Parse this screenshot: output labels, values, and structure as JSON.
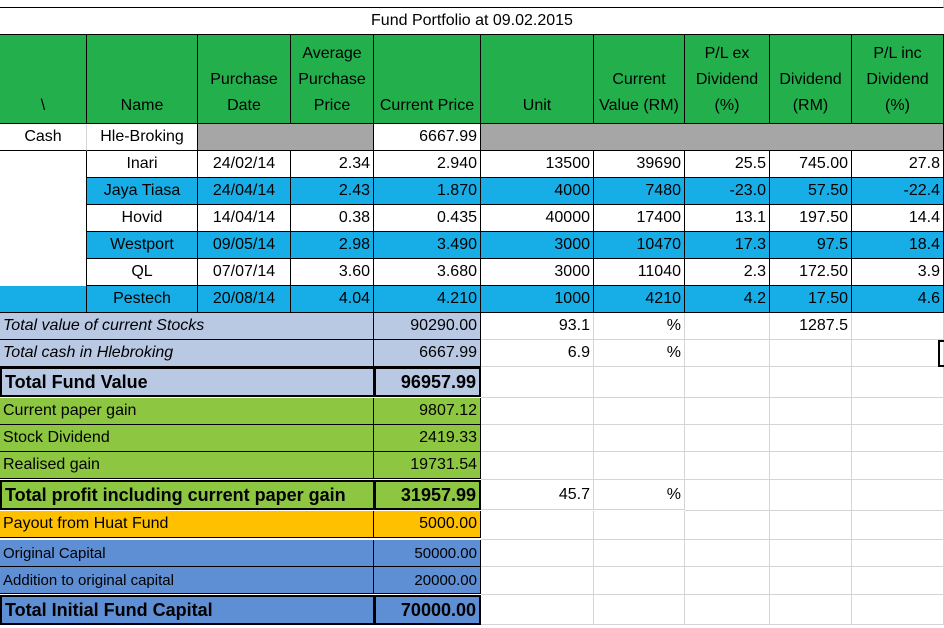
{
  "title": "Fund Portfolio at 09.02.2015",
  "headers": [
    "\\",
    "Name",
    "Purchase Date",
    "Average Purchase Price",
    "Current Price",
    "Unit",
    "Current Value (RM)",
    "P/L ex Dividend (%)",
    "Dividend (RM)",
    "P/L inc Dividend (%)"
  ],
  "cash_row": {
    "label": "Cash",
    "name": "Hle-Broking",
    "price": "6667.99"
  },
  "stocks": [
    {
      "name": "Inari",
      "date": "24/02/14",
      "avg": "2.34",
      "cur": "2.940",
      "unit": "13500",
      "value": "39690",
      "pl_ex": "25.5",
      "div": "745.00",
      "pl_inc": "27.8"
    },
    {
      "name": "Jaya Tiasa",
      "date": "24/04/14",
      "avg": "2.43",
      "cur": "1.870",
      "unit": "4000",
      "value": "7480",
      "pl_ex": "-23.0",
      "div": "57.50",
      "pl_inc": "-22.4"
    },
    {
      "name": "Hovid",
      "date": "14/04/14",
      "avg": "0.38",
      "cur": "0.435",
      "unit": "40000",
      "value": "17400",
      "pl_ex": "13.1",
      "div": "197.50",
      "pl_inc": "14.4"
    },
    {
      "name": "Westport",
      "date": "09/05/14",
      "avg": "2.98",
      "cur": "3.490",
      "unit": "3000",
      "value": "10470",
      "pl_ex": "17.3",
      "div": "97.5",
      "pl_inc": "18.4"
    },
    {
      "name": "QL",
      "date": "07/07/14",
      "avg": "3.60",
      "cur": "3.680",
      "unit": "3000",
      "value": "11040",
      "pl_ex": "2.3",
      "div": "172.50",
      "pl_inc": "3.9"
    },
    {
      "name": "Pestech",
      "date": "20/08/14",
      "avg": "4.04",
      "cur": "4.210",
      "unit": "1000",
      "value": "4210",
      "pl_ex": "4.2",
      "div": "17.50",
      "pl_inc": "4.6"
    }
  ],
  "summary": {
    "stocks_label": "Total value of current Stocks",
    "stocks_value": "90290.00",
    "stocks_pct": "93.1",
    "pct_sign": "%",
    "div_total": "1287.5",
    "cash_label": "Total cash in Hlebroking",
    "cash_value": "6667.99",
    "cash_pct": "6.9",
    "fund_label": "Total Fund Value",
    "fund_value": "96957.99",
    "paper_label": "Current paper gain",
    "paper_value": "9807.12",
    "divid_label": "Stock Dividend",
    "divid_value": "2419.33",
    "realised_label": "Realised gain",
    "realised_value": "19731.54",
    "profit_label": "Total profit including current paper gain",
    "profit_value": "31957.99",
    "profit_pct": "45.7",
    "payout_label": "Payout from Huat Fund",
    "payout_value": "5000.00",
    "orig_label": "Original Capital",
    "orig_value": "50000.00",
    "add_label": "Addition to original capital",
    "add_value": "20000.00",
    "initial_label": "Total Initial Fund Capital",
    "initial_value": "70000.00"
  }
}
